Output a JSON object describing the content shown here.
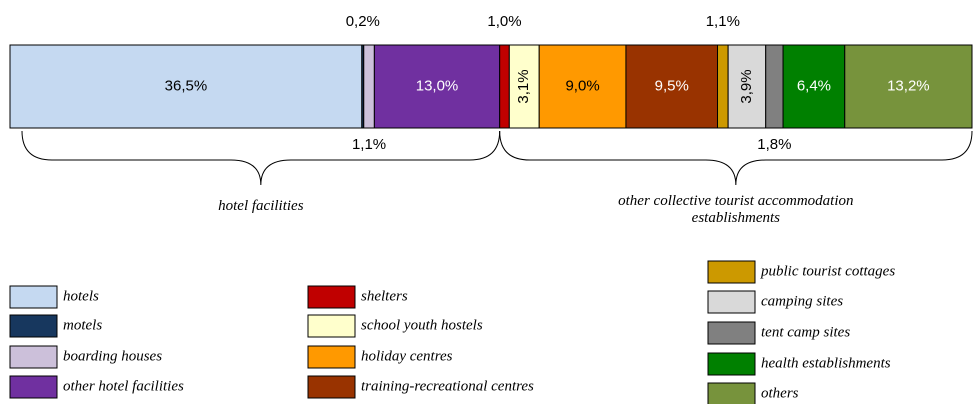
{
  "chart_data": {
    "type": "stacked-bar-100",
    "groups": [
      {
        "name": "hotel facilities",
        "segments": [
          {
            "name": "hotels",
            "color": "#c5d9f1",
            "value": 36.5,
            "value_label": "36,5%"
          },
          {
            "name": "motels",
            "color": "#17375e",
            "value": 0.2,
            "value_label": "0,2%"
          },
          {
            "name": "boarding houses",
            "color": "#ccc0da",
            "value": 1.1,
            "value_label": "1,1%"
          },
          {
            "name": "other hotel facilities",
            "color": "#7030a0",
            "value": 13.0,
            "value_label": "13,0%"
          }
        ]
      },
      {
        "name": "other collective tourist accommodation establishments",
        "segments": [
          {
            "name": "shelters",
            "color": "#c00000",
            "value": 1.0,
            "value_label": "1,0%"
          },
          {
            "name": "school youth hostels",
            "color": "#ffffcc",
            "value": 3.1,
            "value_label": "3,1%"
          },
          {
            "name": "holiday centres",
            "color": "#ff9900",
            "value": 9.0,
            "value_label": "9,0%"
          },
          {
            "name": "training-recreational centres",
            "color": "#993300",
            "value": 9.5,
            "value_label": "9,5%"
          },
          {
            "name": "public tourist cottages",
            "color": "#cc9900",
            "value": 1.1,
            "value_label": "1,1%"
          },
          {
            "name": "camping sites",
            "color": "#d9d9d9",
            "value": 3.9,
            "value_label": "3,9%"
          },
          {
            "name": "tent camp sites",
            "color": "#808080",
            "value": 1.8,
            "value_label": "1,8%"
          },
          {
            "name": "health establishments",
            "color": "#008000",
            "value": 6.4,
            "value_label": "6,4%"
          },
          {
            "name": "others",
            "color": "#77933c",
            "value": 13.2,
            "value_label": "13,2%"
          }
        ]
      }
    ]
  }
}
